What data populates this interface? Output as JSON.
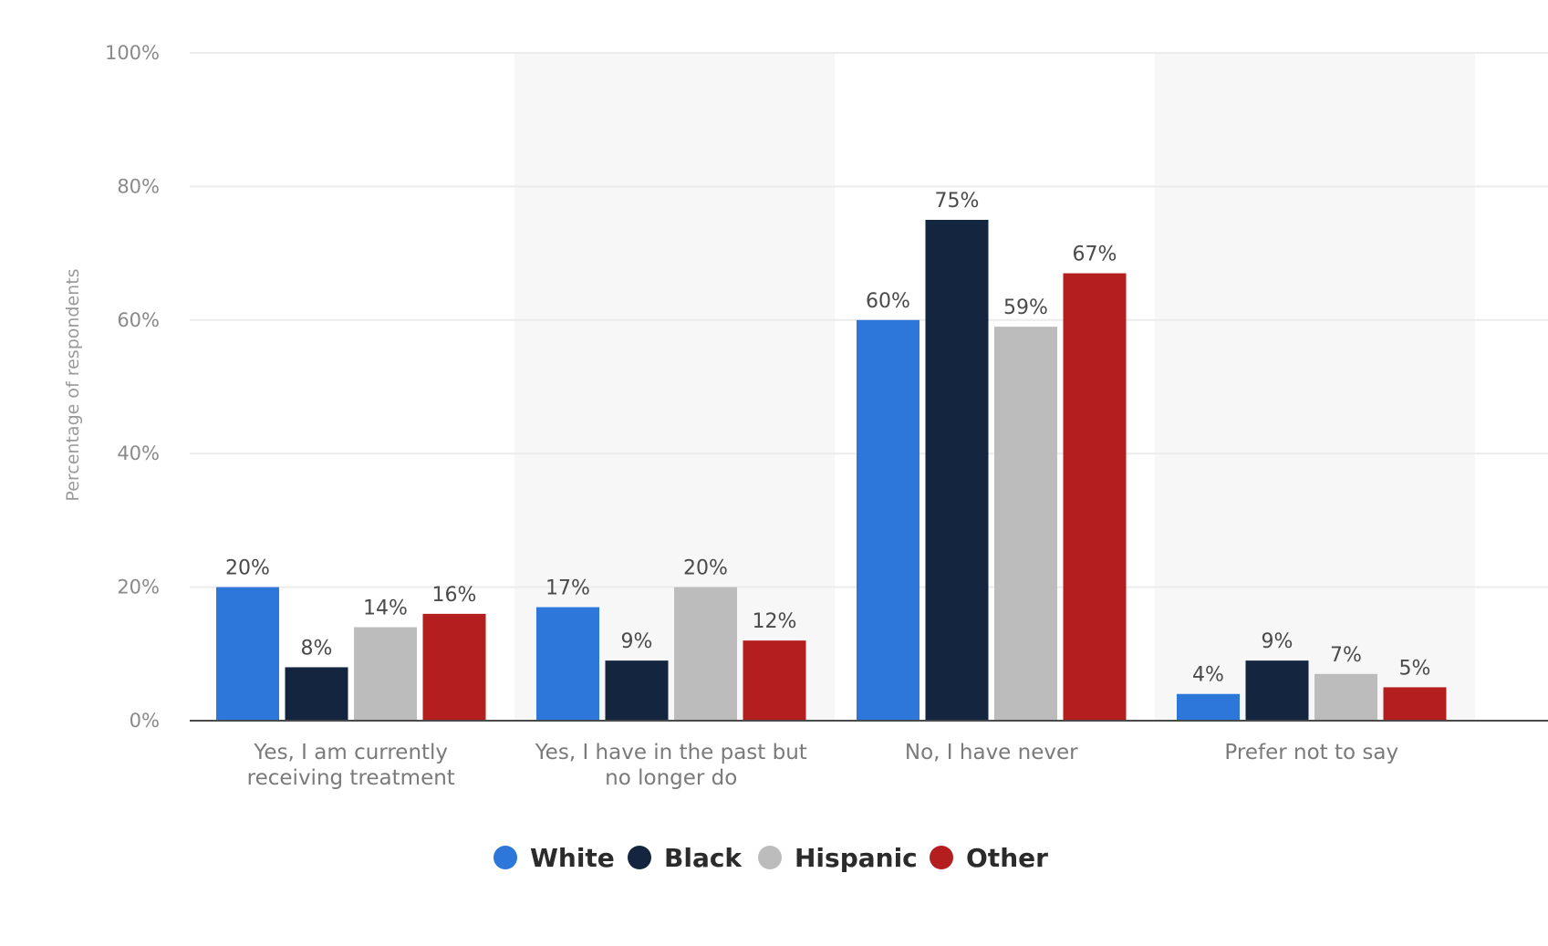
{
  "chart_data": {
    "type": "bar",
    "title": "",
    "xlabel": "",
    "ylabel": "Percentage of respondents",
    "ylim": [
      0,
      100
    ],
    "yticks": [
      0,
      20,
      40,
      60,
      80,
      100
    ],
    "ytick_labels": [
      "0%",
      "20%",
      "40%",
      "60%",
      "80%",
      "100%"
    ],
    "categories": [
      [
        "Yes, I am currently",
        "receiving treatment"
      ],
      [
        "Yes, I have in the past but",
        "no longer do"
      ],
      [
        "No, I have never"
      ],
      [
        "Prefer not to say"
      ]
    ],
    "series": [
      {
        "name": "White",
        "color": "#2d76da",
        "values": [
          20,
          17,
          60,
          4
        ]
      },
      {
        "name": "Black",
        "color": "#13253f",
        "values": [
          8,
          9,
          75,
          9
        ]
      },
      {
        "name": "Hispanic",
        "color": "#bcbcbc",
        "values": [
          14,
          20,
          59,
          7
        ]
      },
      {
        "name": "Other",
        "color": "#b51e1e",
        "values": [
          16,
          12,
          67,
          5
        ]
      }
    ],
    "value_suffix": "%",
    "grid": true,
    "legend_position": "bottom-center"
  }
}
